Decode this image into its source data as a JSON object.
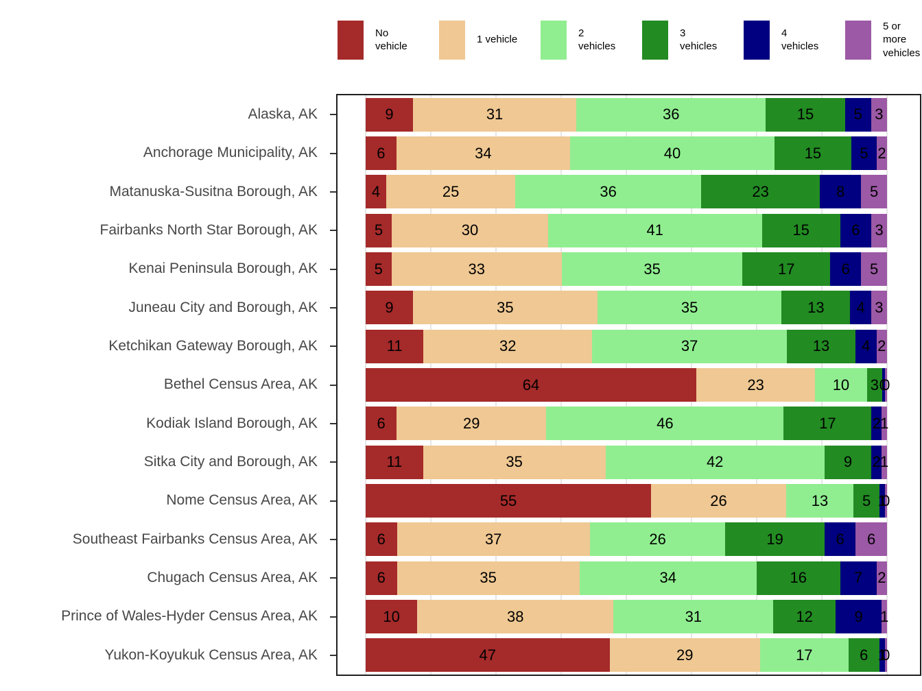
{
  "chart_data": {
    "type": "bar",
    "orientation": "horizontal",
    "stacked": true,
    "unit": "percent of households",
    "title": "",
    "xlabel": "",
    "ylabel": "",
    "xlim": [
      0,
      100
    ],
    "grid": "vertical gridlines every 12.5% from 0 to 100, light gray",
    "legend_position": "top",
    "panel_border_color": "#1f1f1f",
    "series": [
      {
        "name": "No vehicle",
        "color": "#A52A2A"
      },
      {
        "name": "1 vehicle",
        "color": "#EFC893"
      },
      {
        "name": "2 vehicles",
        "color": "#90EE90"
      },
      {
        "name": "3 vehicles",
        "color": "#228B22"
      },
      {
        "name": "4 vehicles",
        "color": "#000080"
      },
      {
        "name": "5 or more vehicles",
        "color": "#9C59A5"
      }
    ],
    "rows": [
      {
        "name": "Alaska, AK",
        "values": [
          9,
          31,
          36,
          15,
          5,
          3
        ]
      },
      {
        "name": "Anchorage Municipality, AK",
        "values": [
          6,
          34,
          40,
          15,
          5,
          2
        ]
      },
      {
        "name": "Matanuska-Susitna Borough, AK",
        "values": [
          4,
          25,
          36,
          23,
          8,
          5
        ]
      },
      {
        "name": "Fairbanks North Star Borough, AK",
        "values": [
          5,
          30,
          41,
          15,
          6,
          3
        ]
      },
      {
        "name": "Kenai Peninsula Borough, AK",
        "values": [
          5,
          33,
          35,
          17,
          6,
          5
        ]
      },
      {
        "name": "Juneau City and Borough, AK",
        "values": [
          9,
          35,
          35,
          13,
          4,
          3
        ]
      },
      {
        "name": "Ketchikan Gateway Borough, AK",
        "values": [
          11,
          32,
          37,
          13,
          4,
          2
        ]
      },
      {
        "name": "Bethel Census Area, AK",
        "values": [
          64,
          23,
          10,
          3,
          0,
          0
        ]
      },
      {
        "name": "Kodiak Island Borough, AK",
        "values": [
          6,
          29,
          46,
          17,
          2,
          1
        ]
      },
      {
        "name": "Sitka City and Borough, AK",
        "values": [
          11,
          35,
          42,
          9,
          2,
          1
        ]
      },
      {
        "name": "Nome Census Area, AK",
        "values": [
          55,
          26,
          13,
          5,
          1,
          0
        ]
      },
      {
        "name": "Southeast Fairbanks Census Area, AK",
        "values": [
          6,
          37,
          26,
          19,
          6,
          6
        ]
      },
      {
        "name": "Chugach Census Area, AK",
        "values": [
          6,
          35,
          34,
          16,
          7,
          2
        ]
      },
      {
        "name": "Prince of Wales-Hyder Census Area, AK",
        "values": [
          10,
          38,
          31,
          12,
          9,
          1
        ]
      },
      {
        "name": "Yukon-Koyukuk Census Area, AK",
        "values": [
          47,
          29,
          17,
          6,
          1,
          0
        ]
      }
    ]
  }
}
